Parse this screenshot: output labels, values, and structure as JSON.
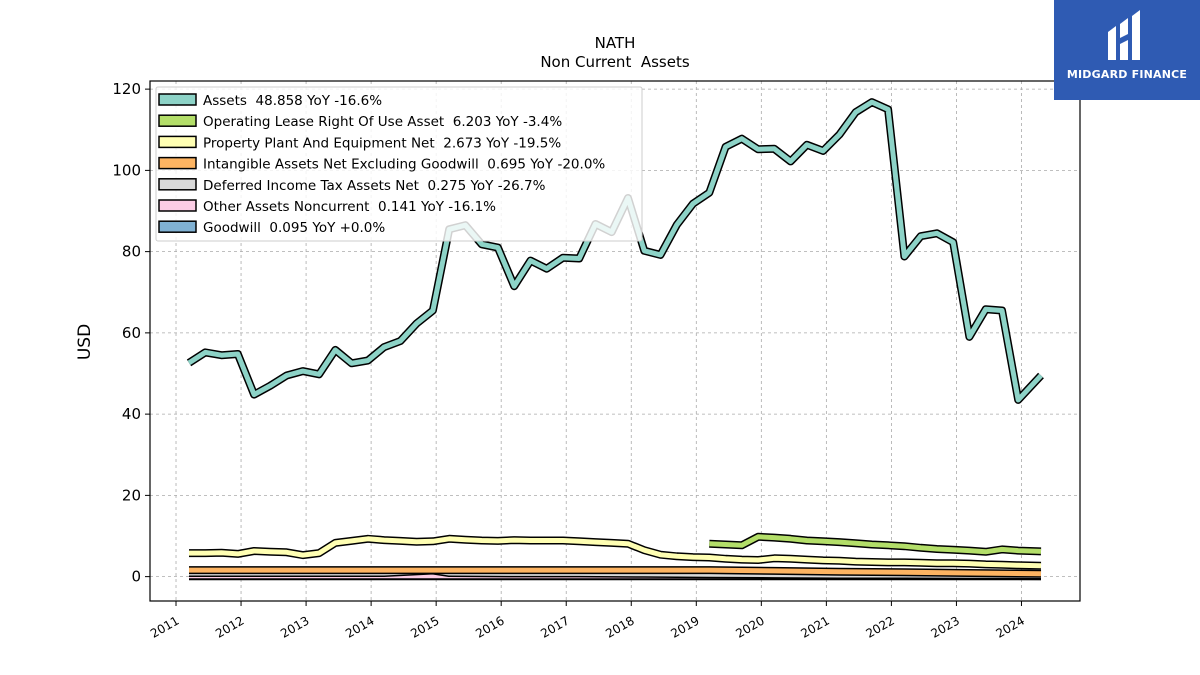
{
  "brand": {
    "name": "MIDGARD FINANCE",
    "color": "#2f5bb3"
  },
  "chart_data": {
    "type": "line",
    "title": "NATH",
    "subtitle": "Non Current  Assets",
    "ylabel": "USD",
    "xlabel": "",
    "ylim": [
      -6,
      122
    ],
    "xlim": [
      2010.6,
      2024.9
    ],
    "yticks": [
      0,
      20,
      40,
      60,
      80,
      100,
      120
    ],
    "xticks": [
      "2011",
      "2012",
      "2013",
      "2014",
      "2015",
      "2016",
      "2017",
      "2018",
      "2019",
      "2020",
      "2021",
      "2022",
      "2023",
      "2024"
    ],
    "grid": true,
    "legend_position": "top-left",
    "series": [
      {
        "name": "Assets",
        "legend": "Assets  48.858 YoY -16.6%",
        "color": "#8dd3c7",
        "x": [
          2011.2,
          2011.45,
          2011.7,
          2011.95,
          2012.2,
          2012.45,
          2012.7,
          2012.95,
          2013.2,
          2013.45,
          2013.7,
          2013.95,
          2014.2,
          2014.45,
          2014.7,
          2014.95,
          2015.2,
          2015.45,
          2015.7,
          2015.95,
          2016.2,
          2016.45,
          2016.7,
          2016.95,
          2017.2,
          2017.45,
          2017.7,
          2017.95,
          2018.2,
          2018.45,
          2018.7,
          2018.95,
          2019.2,
          2019.45,
          2019.7,
          2019.95,
          2020.2,
          2020.45,
          2020.7,
          2020.95,
          2021.2,
          2021.45,
          2021.7,
          2021.95,
          2022.2,
          2022.45,
          2022.7,
          2022.95,
          2023.2,
          2023.45,
          2023.7,
          2023.95,
          2024.3
        ],
        "y": [
          52.6,
          55.2,
          54.5,
          54.8,
          44.8,
          47.0,
          49.5,
          50.6,
          49.8,
          55.8,
          52.5,
          53.2,
          56.5,
          58.0,
          62.3,
          65.5,
          85.5,
          86.5,
          81.8,
          81.0,
          71.5,
          77.8,
          75.8,
          78.5,
          78.3,
          86.8,
          84.8,
          93.2,
          80.2,
          79.2,
          86.6,
          91.8,
          94.5,
          105.8,
          107.8,
          105.2,
          105.3,
          102.2,
          106.3,
          104.8,
          108.8,
          114.3,
          116.8,
          115.0,
          78.8,
          83.8,
          84.5,
          82.3,
          59.0,
          65.8,
          65.5,
          43.5,
          49.5
        ]
      },
      {
        "name": "Operating Lease Right Of Use Asset",
        "legend": "Operating Lease Right Of Use Asset  6.203 YoY -3.4%",
        "color": "#b3de69",
        "x": [
          2019.2,
          2019.45,
          2019.7,
          2019.95,
          2020.2,
          2020.45,
          2020.7,
          2020.95,
          2021.2,
          2021.45,
          2021.7,
          2021.95,
          2022.2,
          2022.45,
          2022.7,
          2022.95,
          2023.2,
          2023.45,
          2023.7,
          2023.95,
          2024.3
        ],
        "y": [
          8.1,
          7.9,
          7.7,
          9.8,
          9.6,
          9.3,
          8.9,
          8.7,
          8.5,
          8.2,
          7.9,
          7.7,
          7.5,
          7.1,
          6.8,
          6.6,
          6.4,
          6.1,
          6.7,
          6.4,
          6.2
        ]
      },
      {
        "name": "Property Plant And Equipment Net",
        "legend": "Property Plant And Equipment Net  2.673 YoY -19.5%",
        "color": "#ffffb3",
        "x": [
          2011.2,
          2011.45,
          2011.7,
          2011.95,
          2012.2,
          2012.45,
          2012.7,
          2012.95,
          2013.2,
          2013.45,
          2013.7,
          2013.95,
          2014.2,
          2014.45,
          2014.7,
          2014.95,
          2015.2,
          2015.45,
          2015.7,
          2015.95,
          2016.2,
          2016.45,
          2016.7,
          2016.95,
          2017.2,
          2017.45,
          2017.7,
          2017.95,
          2018.2,
          2018.45,
          2018.7,
          2018.95,
          2019.2,
          2019.45,
          2019.7,
          2019.95,
          2020.2,
          2020.45,
          2020.7,
          2020.95,
          2021.2,
          2021.45,
          2021.7,
          2021.95,
          2022.2,
          2022.45,
          2022.7,
          2022.95,
          2023.2,
          2023.45,
          2023.7,
          2023.95,
          2024.3
        ],
        "y": [
          5.8,
          5.8,
          5.9,
          5.6,
          6.3,
          6.1,
          6.0,
          5.3,
          5.8,
          8.3,
          8.8,
          9.3,
          9.0,
          8.8,
          8.6,
          8.7,
          9.3,
          9.1,
          8.9,
          8.8,
          9.0,
          8.9,
          8.9,
          8.9,
          8.7,
          8.5,
          8.3,
          8.1,
          6.5,
          5.4,
          5.0,
          4.8,
          4.7,
          4.4,
          4.2,
          4.1,
          4.5,
          4.4,
          4.2,
          4.0,
          3.9,
          3.7,
          3.6,
          3.5,
          3.5,
          3.4,
          3.3,
          3.3,
          3.2,
          3.0,
          2.9,
          2.8,
          2.7
        ]
      },
      {
        "name": "Intangible Assets Net Excluding Goodwill",
        "legend": "Intangible Assets Net Excluding Goodwill  0.695 YoY -20.0%",
        "color": "#fdb462",
        "x": [
          2011.2,
          2012.2,
          2013.2,
          2014.2,
          2015.2,
          2016.2,
          2017.2,
          2018.2,
          2019.2,
          2020.2,
          2021.2,
          2022.2,
          2023.2,
          2024.3
        ],
        "y": [
          1.6,
          1.6,
          1.6,
          1.6,
          1.6,
          1.6,
          1.6,
          1.6,
          1.6,
          1.4,
          1.2,
          1.1,
          0.9,
          0.7
        ]
      },
      {
        "name": "Deferred Income Tax Assets Net",
        "legend": "Deferred Income Tax Assets Net  0.275 YoY -26.7%",
        "color": "#d9d9d9",
        "x": [
          2011.2,
          2012.2,
          2013.2,
          2014.2,
          2014.95,
          2015.2,
          2016.2,
          2017.2,
          2018.2,
          2019.2,
          2020.2,
          2021.2,
          2022.2,
          2023.2,
          2024.3
        ],
        "y": [
          0.9,
          0.9,
          0.9,
          0.9,
          1.5,
          0.9,
          0.8,
          0.8,
          0.7,
          0.6,
          0.5,
          0.4,
          0.4,
          0.35,
          0.28
        ]
      },
      {
        "name": "Other Assets Noncurrent",
        "legend": "Other Assets Noncurrent  0.141 YoY -16.1%",
        "color": "#fccde5",
        "x": [
          2011.2,
          2013.2,
          2015.2,
          2017.2,
          2019.2,
          2021.2,
          2023.2,
          2024.3
        ],
        "y": [
          0.2,
          0.2,
          0.2,
          0.2,
          0.2,
          0.2,
          0.17,
          0.14
        ]
      },
      {
        "name": "Goodwill",
        "legend": "Goodwill  0.095 YoY +0.0%",
        "color": "#80b1d3",
        "x": [
          2011.2,
          2024.3
        ],
        "y": [
          0.1,
          0.1
        ]
      }
    ]
  }
}
